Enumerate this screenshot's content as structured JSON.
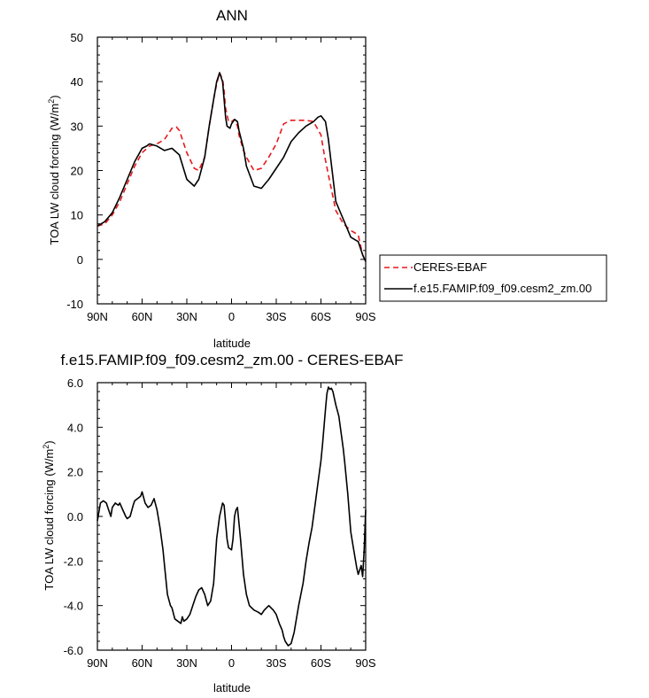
{
  "chart_data": [
    {
      "type": "line",
      "title": "ANN",
      "xlabel": "latitude",
      "ylabel": "TOA LW cloud forcing (W/m",
      "ylabel_sup": "2",
      "ylabel_end": ")",
      "xlim": [
        90,
        -90
      ],
      "ylim": [
        -10,
        50
      ],
      "x_ticks": [
        90,
        60,
        30,
        0,
        -30,
        -60,
        -90
      ],
      "x_tick_labels": [
        "90N",
        "60N",
        "30N",
        "0",
        "30S",
        "60S",
        "90S"
      ],
      "y_ticks": [
        -10,
        0,
        10,
        20,
        30,
        40,
        50
      ],
      "y_tick_labels": [
        "-10",
        "0",
        "10",
        "20",
        "30",
        "40",
        "50"
      ],
      "legend_position": "right",
      "series": [
        {
          "name": "CERES-EBAF",
          "color": "#e8191c",
          "dash": "dashed",
          "x": [
            90,
            85,
            80,
            75,
            70,
            65,
            60,
            55,
            50,
            45,
            40,
            37,
            35,
            30,
            25,
            22,
            18,
            15,
            12,
            10,
            8,
            6,
            5,
            4,
            2,
            0,
            -2,
            -4,
            -5,
            -8,
            -10,
            -15,
            -20,
            -25,
            -30,
            -35,
            -40,
            -45,
            -50,
            -55,
            -60,
            -62,
            -65,
            -70,
            -75,
            -80,
            -85,
            -88,
            -90
          ],
          "y": [
            7.5,
            8.0,
            10.0,
            13.0,
            17.0,
            21.0,
            24.0,
            25.5,
            26.0,
            27.0,
            29.5,
            29.8,
            29.0,
            24.0,
            20.5,
            20.0,
            23.0,
            30.0,
            36.0,
            39.5,
            42.0,
            40.5,
            38.0,
            34.0,
            31.0,
            31.0,
            31.5,
            30.0,
            28.0,
            24.5,
            23.0,
            20.0,
            20.5,
            23.0,
            26.0,
            30.5,
            31.3,
            31.3,
            31.3,
            31.0,
            28.0,
            24.0,
            19.0,
            11.0,
            8.0,
            6.5,
            5.5,
            1.0,
            -0.5
          ]
        },
        {
          "name": "f.e15.FAMIP.f09_f09.cesm2_zm.00",
          "color": "#000000",
          "dash": "solid",
          "x": [
            90,
            85,
            80,
            75,
            70,
            65,
            60,
            57,
            55,
            50,
            45,
            40,
            35,
            30,
            25,
            22,
            18,
            15,
            12,
            10,
            8,
            6,
            5,
            4,
            3,
            1,
            0,
            -2,
            -4,
            -5,
            -8,
            -10,
            -15,
            -20,
            -25,
            -30,
            -35,
            -40,
            -45,
            -50,
            -55,
            -58,
            -60,
            -63,
            -65,
            -70,
            -75,
            -80,
            -85,
            -88,
            -90
          ],
          "y": [
            7.5,
            8.5,
            10.5,
            14.0,
            18.0,
            22.0,
            25.0,
            25.5,
            26.0,
            25.5,
            24.5,
            25.0,
            23.5,
            18.0,
            16.5,
            18.0,
            23.0,
            30.0,
            36.0,
            40.0,
            42.0,
            40.0,
            36.0,
            32.0,
            30.0,
            29.5,
            30.5,
            31.5,
            31.0,
            29.0,
            25.0,
            21.0,
            16.5,
            16.0,
            18.0,
            20.5,
            23.0,
            26.5,
            28.5,
            30.0,
            31.0,
            32.0,
            32.3,
            31.0,
            27.0,
            13.0,
            9.0,
            5.0,
            4.0,
            1.0,
            -0.5
          ]
        }
      ]
    },
    {
      "type": "line",
      "title": "f.e15.FAMIP.f09_f09.cesm2_zm.00 - CERES-EBAF",
      "xlabel": "latitude",
      "ylabel": "TOA LW cloud forcing (W/m",
      "ylabel_sup": "2",
      "ylabel_end": ")",
      "xlim": [
        90,
        -90
      ],
      "ylim": [
        -6,
        6
      ],
      "x_ticks": [
        90,
        60,
        30,
        0,
        -30,
        -60,
        -90
      ],
      "x_tick_labels": [
        "90N",
        "60N",
        "30N",
        "0",
        "30S",
        "60S",
        "90S"
      ],
      "y_ticks": [
        -6,
        -4,
        -2,
        0,
        2,
        4,
        6
      ],
      "y_tick_labels": [
        "-6.0",
        "-4.0",
        "-2.0",
        "0.0",
        "2.0",
        "4.0",
        "6.0"
      ],
      "series": [
        {
          "name": "",
          "color": "#000000",
          "dash": "solid",
          "x": [
            90,
            88,
            86,
            84,
            82,
            81,
            80,
            78,
            76,
            75,
            73,
            71,
            70,
            68,
            66,
            65,
            63,
            61,
            60,
            58,
            56,
            54,
            52,
            50,
            48,
            46,
            45,
            43,
            41,
            40,
            38,
            36,
            34,
            33,
            32,
            30,
            28,
            26,
            24,
            22,
            20,
            18,
            16,
            14,
            12,
            11,
            10,
            8,
            6,
            5,
            3,
            2,
            0,
            -1,
            -2,
            -3,
            -4,
            -6,
            -8,
            -10,
            -12,
            -15,
            -18,
            -20,
            -22,
            -25,
            -28,
            -30,
            -32,
            -34,
            -35,
            -36,
            -38,
            -40,
            -42,
            -45,
            -48,
            -50,
            -52,
            -54,
            -56,
            -58,
            -60,
            -61,
            -62,
            -63,
            -64,
            -65,
            -66,
            -67,
            -68,
            -70,
            -72,
            -74,
            -75,
            -76,
            -78,
            -80,
            -82,
            -84,
            -85,
            -86,
            -87,
            -88,
            -89,
            -90
          ],
          "y": [
            -0.2,
            0.6,
            0.7,
            0.6,
            0.2,
            0.0,
            0.4,
            0.6,
            0.5,
            0.6,
            0.3,
            0.0,
            -0.1,
            0.0,
            0.5,
            0.7,
            0.8,
            0.9,
            1.1,
            0.6,
            0.4,
            0.5,
            0.8,
            0.3,
            -0.5,
            -1.5,
            -2.2,
            -3.5,
            -4.0,
            -4.1,
            -4.6,
            -4.7,
            -4.8,
            -4.5,
            -4.7,
            -4.6,
            -4.4,
            -4.0,
            -3.6,
            -3.3,
            -3.2,
            -3.5,
            -4.0,
            -3.8,
            -3.0,
            -2.0,
            -1.0,
            0.0,
            0.6,
            0.5,
            -1.0,
            -1.4,
            -1.5,
            -1.0,
            0.0,
            0.3,
            0.4,
            -1.0,
            -2.6,
            -3.5,
            -4.0,
            -4.2,
            -4.3,
            -4.4,
            -4.2,
            -4.0,
            -4.2,
            -4.4,
            -4.8,
            -5.1,
            -5.4,
            -5.6,
            -5.8,
            -5.7,
            -5.2,
            -4.0,
            -3.0,
            -2.0,
            -1.2,
            -0.5,
            0.5,
            1.5,
            2.5,
            3.2,
            4.0,
            4.8,
            5.5,
            5.8,
            5.7,
            5.75,
            5.6,
            5.0,
            4.5,
            3.5,
            3.0,
            2.4,
            1.0,
            -0.7,
            -1.5,
            -2.3,
            -2.6,
            -2.4,
            -2.2,
            -2.7,
            -1.5,
            0.3
          ]
        }
      ]
    }
  ]
}
